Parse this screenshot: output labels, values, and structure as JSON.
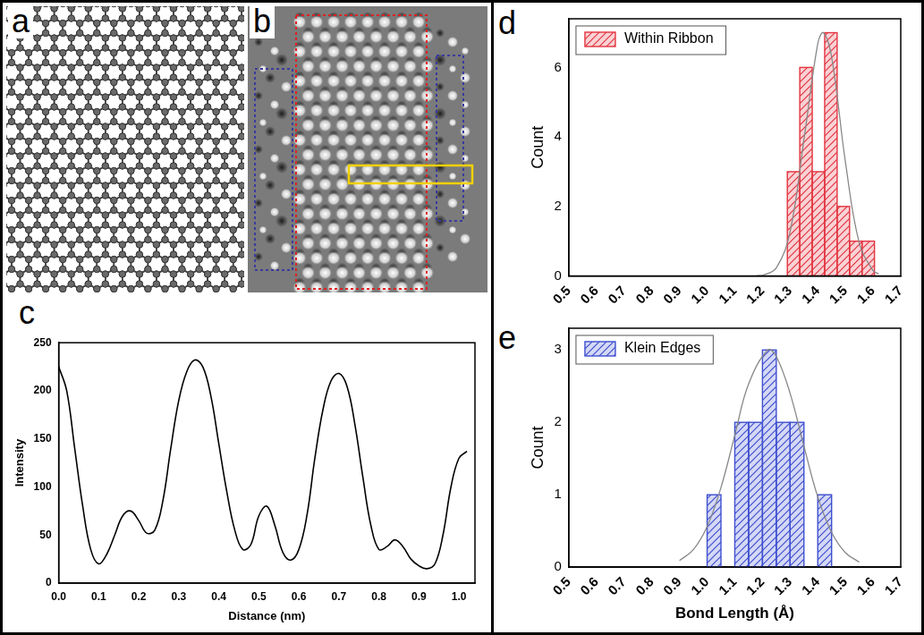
{
  "panel_labels": [
    "a",
    "b",
    "c",
    "d",
    "e"
  ],
  "chart_data": [
    {
      "panel": "c",
      "type": "line",
      "color": "#000000",
      "xlabel": "Distance (nm)",
      "ylabel": "Intensity",
      "x": [
        0.0,
        0.02,
        0.04,
        0.06,
        0.08,
        0.1,
        0.12,
        0.14,
        0.16,
        0.18,
        0.2,
        0.22,
        0.24,
        0.26,
        0.28,
        0.3,
        0.32,
        0.34,
        0.36,
        0.38,
        0.4,
        0.42,
        0.44,
        0.46,
        0.48,
        0.5,
        0.52,
        0.54,
        0.56,
        0.58,
        0.6,
        0.62,
        0.64,
        0.66,
        0.68,
        0.7,
        0.72,
        0.74,
        0.76,
        0.78,
        0.8,
        0.82,
        0.84,
        0.86,
        0.88,
        0.9,
        0.92,
        0.94,
        0.96,
        0.98,
        1.0,
        1.02
      ],
      "values": [
        225,
        200,
        140,
        80,
        35,
        20,
        30,
        50,
        70,
        75,
        65,
        52,
        55,
        85,
        140,
        190,
        220,
        232,
        225,
        195,
        145,
        95,
        55,
        35,
        40,
        70,
        80,
        60,
        32,
        24,
        35,
        70,
        130,
        180,
        210,
        218,
        205,
        165,
        110,
        60,
        35,
        38,
        45,
        38,
        25,
        18,
        15,
        20,
        50,
        100,
        130,
        137
      ],
      "xlim": [
        0,
        1.04
      ],
      "xticks": [
        {
          "value": 0,
          "label": "0.0"
        },
        0.1,
        0.2,
        0.3,
        0.4,
        0.5,
        0.6,
        0.7,
        0.8,
        0.9,
        {
          "value": 1,
          "label": "1.0"
        }
      ],
      "ylim": [
        0,
        250
      ],
      "yticks": [
        0,
        50,
        100,
        150,
        200,
        250
      ],
      "grid": false
    },
    {
      "panel": "d",
      "type": "histogram",
      "ylabel": "Count",
      "legend": "upper left",
      "grid": false,
      "series": [
        {
          "name": "Within Ribbon",
          "type": "histogram",
          "color": "#e3343f",
          "bins": [
            1.29,
            1.335,
            1.38,
            1.425,
            1.47,
            1.515,
            1.56,
            1.605
          ],
          "values": [
            3,
            6,
            3,
            7,
            2,
            1,
            1
          ]
        },
        {
          "type": "line",
          "color": "#888888",
          "x": [
            1.18,
            1.2,
            1.25,
            1.3,
            1.35,
            1.4,
            1.42,
            1.45,
            1.5,
            1.55,
            1.6,
            1.62
          ],
          "values": [
            0.01,
            0.02,
            0.23,
            1.28,
            3.92,
            6.68,
            7,
            6.3,
            3.28,
            0.95,
            0.15,
            0.06
          ]
        }
      ],
      "xlim": [
        0.5,
        1.7
      ],
      "xticks": [
        0.5,
        0.6,
        0.7,
        0.8,
        0.9,
        {
          "value": 1,
          "label": "1.0"
        },
        1.1,
        1.2,
        1.3,
        1.4,
        1.5,
        1.6,
        1.7
      ],
      "ylim": [
        0,
        7.4
      ],
      "yticks": [
        0,
        2,
        4,
        6
      ]
    },
    {
      "panel": "e",
      "type": "histogram",
      "xlabel": "Bond Length (Å)",
      "ylabel": "Count",
      "legend": "upper left",
      "grid": false,
      "series": [
        {
          "name": "Klein Edges",
          "type": "histogram",
          "color": "#3e4fd0",
          "bins": [
            1.0,
            1.05,
            1.1,
            1.15,
            1.2,
            1.25,
            1.3,
            1.35,
            1.4,
            1.45
          ],
          "values": [
            1,
            0,
            2,
            2,
            3,
            2,
            2,
            0,
            1
          ]
        },
        {
          "type": "line",
          "color": "#888888",
          "x": [
            0.9,
            0.95,
            1.0,
            1.05,
            1.1,
            1.15,
            1.22,
            1.25,
            1.3,
            1.35,
            1.4,
            1.45,
            1.5,
            1.55
          ],
          "values": [
            0.09,
            0.24,
            0.56,
            1.1,
            1.82,
            2.53,
            3,
            2.91,
            2.4,
            1.67,
            0.97,
            0.48,
            0.2,
            0.07
          ]
        }
      ],
      "xlim": [
        0.5,
        1.7
      ],
      "xticks": [
        0.5,
        0.6,
        0.7,
        0.8,
        0.9,
        {
          "value": 1,
          "label": "1.0"
        },
        1.1,
        1.2,
        1.3,
        1.4,
        1.5,
        1.6,
        1.7
      ],
      "ylim": [
        0,
        3.3
      ],
      "yticks": [
        0,
        1,
        2,
        3
      ]
    }
  ]
}
